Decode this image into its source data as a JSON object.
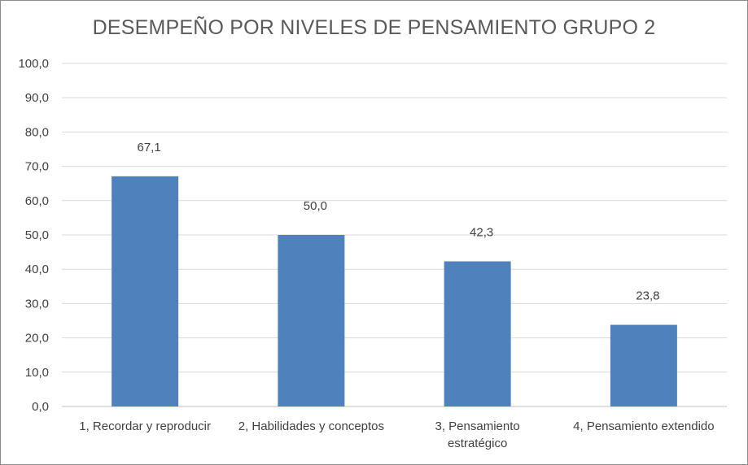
{
  "chart_data": {
    "type": "bar",
    "title": "DESEMPEÑO POR NIVELES DE PENSAMIENTO GRUPO 2",
    "categories": [
      [
        "1, Recordar y reproducir"
      ],
      [
        "2, Habilidades y conceptos"
      ],
      [
        "3, Pensamiento",
        "estratégico"
      ],
      [
        "4, Pensamiento extendido"
      ]
    ],
    "values": [
      67.1,
      50.0,
      42.3,
      23.8
    ],
    "data_labels": [
      "67,1",
      "50,0",
      "42,3",
      "23,8"
    ],
    "y_ticks": [
      "0,0",
      "10,0",
      "20,0",
      "30,0",
      "40,0",
      "50,0",
      "60,0",
      "70,0",
      "80,0",
      "90,0",
      "100,0"
    ],
    "ylim": [
      0,
      100
    ],
    "grid": true,
    "legend": "none",
    "bar_color": "#4f81bd",
    "xlabel": "",
    "ylabel": ""
  }
}
